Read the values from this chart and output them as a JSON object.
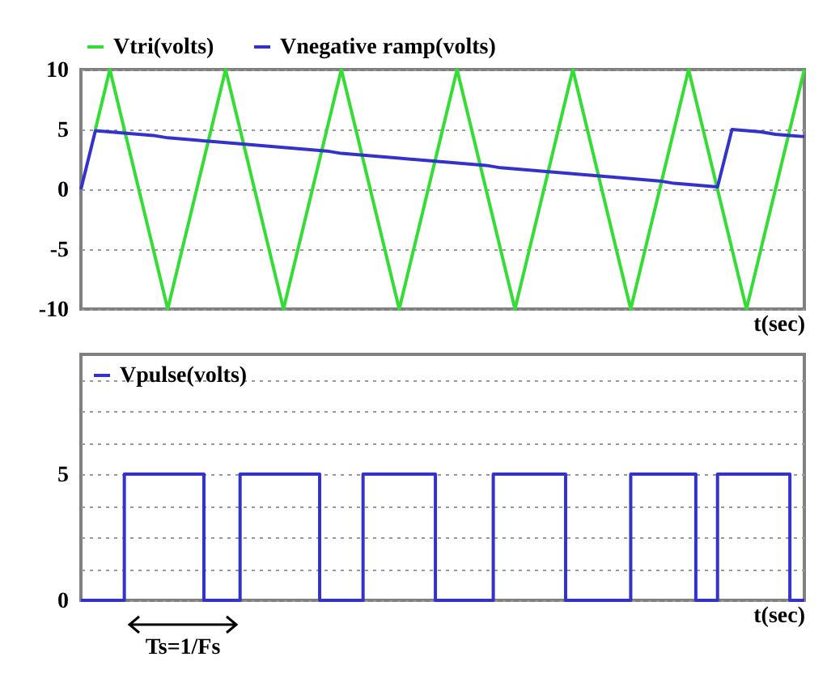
{
  "chart_data": [
    {
      "type": "line",
      "xlabel": "t(sec)",
      "categories": [
        null,
        null,
        null,
        null,
        null,
        null,
        null,
        null,
        null,
        null,
        null,
        null,
        null,
        null,
        null,
        null,
        null,
        null,
        null,
        null,
        null,
        null,
        null,
        null,
        null,
        null,
        null,
        null,
        null,
        null,
        null,
        null,
        null,
        null,
        null,
        null,
        null,
        null,
        null,
        null,
        null,
        null,
        null,
        null,
        null,
        null,
        null,
        null,
        null,
        null,
        null
      ],
      "series": [
        {
          "name": "Vtri(volts)",
          "color": "#33dd33",
          "values": [
            null,
            5,
            10,
            5,
            0,
            -5,
            -10,
            -5,
            0,
            5,
            10,
            5,
            0,
            -5,
            -10,
            -5,
            0,
            5,
            10,
            5,
            0,
            -5,
            -10,
            -5,
            0,
            5,
            10,
            5,
            0,
            -5,
            -10,
            -5,
            0,
            5,
            10,
            5,
            0,
            -5,
            -10,
            -5,
            0,
            5,
            10,
            5,
            0,
            -5,
            -10,
            -5,
            0,
            5,
            10
          ]
        },
        {
          "name": "Vnegative ramp(volts)",
          "color": "#3333cc",
          "values": [
            0,
            4.9,
            4.8,
            4.7,
            4.6,
            4.5,
            4.3,
            4.2,
            4.1,
            4.0,
            3.9,
            3.8,
            3.7,
            3.6,
            3.5,
            3.4,
            3.3,
            3.2,
            3.0,
            2.9,
            2.8,
            2.7,
            2.6,
            2.5,
            2.4,
            2.3,
            2.2,
            2.1,
            2.0,
            1.8,
            1.7,
            1.6,
            1.5,
            1.4,
            1.3,
            1.2,
            1.1,
            1.0,
            0.9,
            0.8,
            0.7,
            0.5,
            0.4,
            0.3,
            0.2,
            5.0,
            4.9,
            4.8,
            4.6,
            4.5,
            4.4
          ]
        }
      ],
      "ylim": [
        -10,
        10
      ],
      "yticks": [
        -10,
        -5,
        0,
        5,
        10
      ],
      "grid": "y",
      "legend": "top",
      "tick_labels": "y"
    },
    {
      "type": "step",
      "xlabel": "t(sec)",
      "categories": [
        null,
        null,
        null,
        null,
        null,
        null,
        null,
        null,
        null,
        null,
        null,
        null,
        null,
        null,
        null,
        null,
        null,
        null,
        null,
        null,
        null,
        null,
        null,
        null,
        null,
        null,
        null,
        null,
        null,
        null,
        null,
        null,
        null,
        null,
        null,
        null,
        null,
        null,
        null,
        null,
        null,
        null,
        null,
        null,
        null,
        null,
        null,
        null,
        null,
        null,
        null,
        null,
        null,
        null,
        null,
        null,
        null,
        null,
        null,
        null,
        null,
        null,
        null,
        null,
        null,
        null,
        null,
        null,
        null,
        null,
        null,
        null,
        null,
        null,
        null,
        null,
        null,
        null,
        null,
        null,
        null,
        null,
        null,
        null,
        null,
        null,
        null,
        null,
        null,
        null,
        null,
        null,
        null,
        null,
        null,
        null,
        null,
        null,
        null,
        null,
        null
      ],
      "series": [
        {
          "name": "Vpulse(volts)",
          "color": "#3333cc",
          "values": [
            0,
            0,
            0,
            0,
            0,
            0,
            5,
            5,
            5,
            5,
            5,
            5,
            5,
            5,
            5,
            5,
            5,
            0,
            0,
            0,
            0,
            0,
            5,
            5,
            5,
            5,
            5,
            5,
            5,
            5,
            5,
            5,
            5,
            0,
            0,
            0,
            0,
            0,
            0,
            5,
            5,
            5,
            5,
            5,
            5,
            5,
            5,
            5,
            5,
            0,
            0,
            0,
            0,
            0,
            0,
            0,
            0,
            5,
            5,
            5,
            5,
            5,
            5,
            5,
            5,
            5,
            5,
            0,
            0,
            0,
            0,
            0,
            0,
            0,
            0,
            0,
            5,
            5,
            5,
            5,
            5,
            5,
            5,
            5,
            5,
            0,
            0,
            0,
            5,
            5,
            5,
            5,
            5,
            5,
            5,
            5,
            5,
            5,
            0,
            0,
            0
          ]
        }
      ],
      "ylim": [
        0,
        9.75
      ],
      "yticks": [
        0,
        {
          "value": 1.25,
          "label": null
        },
        {
          "value": 2.5,
          "label": null
        },
        {
          "value": 3.75,
          "label": null
        },
        5,
        {
          "value": 6.25,
          "label": null
        },
        {
          "value": 7.5,
          "label": null
        },
        {
          "value": 8.75,
          "label": null
        }
      ],
      "grid": "y",
      "legend": "top left",
      "tick_labels": "y",
      "annotations": [
        "Ts=1/Fs"
      ]
    }
  ]
}
